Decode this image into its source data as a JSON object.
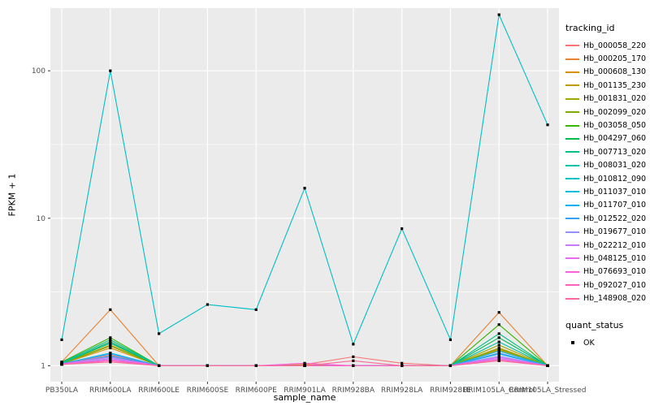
{
  "chart_data": {
    "type": "line",
    "title": "",
    "xlabel": "sample_name",
    "ylabel": "FPKM + 1",
    "y_scale": "log10",
    "ylim": [
      0.78,
      266
    ],
    "y_ticks": [
      1,
      10,
      100
    ],
    "y_minor": [
      3.162,
      31.623
    ],
    "panel_bg": "#EBEBEB",
    "grid_color": "#FFFFFF",
    "point_color": "#000000",
    "legend_title": "tracking_id",
    "quant_legend": {
      "title": "quant_status",
      "items": [
        "OK"
      ]
    },
    "categories": [
      "PB350LA",
      "RRIM600LA",
      "RRIM600LE",
      "RRIM600SE",
      "RRIM600PE",
      "RRIM901LA",
      "RRIM928BA",
      "RRIM928LA",
      "RRIM928LE",
      "RRIM105LA_Control",
      "RRIM105LA_Stressed"
    ],
    "series": [
      {
        "name": "Hb_000058_220",
        "color": "#F8766D",
        "values": [
          1.03,
          1.18,
          1,
          1,
          1,
          1.02,
          1.15,
          1.04,
          1,
          1.22,
          1
        ]
      },
      {
        "name": "Hb_000205_170",
        "color": "#EA8331",
        "values": [
          1.06,
          2.4,
          1,
          1,
          1,
          1.02,
          1,
          1,
          1,
          2.3,
          1
        ]
      },
      {
        "name": "Hb_000608_130",
        "color": "#D89000",
        "values": [
          1.03,
          1.32,
          1,
          1,
          1,
          1,
          1,
          1,
          1,
          1.28,
          1
        ]
      },
      {
        "name": "Hb_001135_230",
        "color": "#C09B00",
        "values": [
          1.04,
          1.38,
          1,
          1,
          1,
          1,
          1,
          1,
          1,
          1.32,
          1
        ]
      },
      {
        "name": "Hb_001831_020",
        "color": "#A3A500",
        "values": [
          1.04,
          1.46,
          1,
          1,
          1,
          1,
          1,
          1,
          1,
          1.38,
          1
        ]
      },
      {
        "name": "Hb_002099_020",
        "color": "#7CAE00",
        "values": [
          1.03,
          1.36,
          1,
          1,
          1,
          1,
          1,
          1,
          1,
          1.3,
          1
        ]
      },
      {
        "name": "Hb_003058_050",
        "color": "#39B600",
        "values": [
          1.06,
          1.55,
          1,
          1,
          1,
          1,
          1,
          1,
          1,
          1.9,
          1
        ]
      },
      {
        "name": "Hb_004297_060",
        "color": "#00BB4E",
        "values": [
          1.04,
          1.42,
          1,
          1,
          1,
          1,
          1,
          1,
          1,
          1.55,
          1
        ]
      },
      {
        "name": "Hb_007713_020",
        "color": "#00C087",
        "values": [
          1.05,
          1.5,
          1,
          1,
          1,
          1,
          1,
          1,
          1,
          1.65,
          1
        ]
      },
      {
        "name": "Hb_008031_020",
        "color": "#00C1AB",
        "values": [
          1.04,
          1.45,
          1,
          1,
          1,
          1,
          1,
          1,
          1,
          1.45,
          1
        ]
      },
      {
        "name": "Hb_010812_090",
        "color": "#00BFC4",
        "values": [
          1.5,
          100,
          1.65,
          2.6,
          2.4,
          16,
          1.4,
          8.5,
          1.5,
          240,
          43
        ]
      },
      {
        "name": "Hb_011037_010",
        "color": "#00BAE0",
        "values": [
          1.03,
          1.22,
          1,
          1,
          1,
          1,
          1,
          1,
          1,
          1.26,
          1
        ]
      },
      {
        "name": "Hb_011707_010",
        "color": "#00B0F6",
        "values": [
          1.02,
          1.16,
          1,
          1,
          1,
          1,
          1,
          1,
          1,
          1.2,
          1
        ]
      },
      {
        "name": "Hb_012522_020",
        "color": "#35A2FF",
        "values": [
          1.03,
          1.2,
          1,
          1,
          1,
          1,
          1,
          1,
          1,
          1.22,
          1
        ]
      },
      {
        "name": "Hb_019677_010",
        "color": "#9590FF",
        "values": [
          1.02,
          1.12,
          1,
          1,
          1,
          1,
          1,
          1,
          1,
          1.16,
          1
        ]
      },
      {
        "name": "Hb_022212_010",
        "color": "#C77CFF",
        "values": [
          1.02,
          1.1,
          1,
          1,
          1,
          1,
          1,
          1,
          1,
          1.12,
          1
        ]
      },
      {
        "name": "Hb_048125_010",
        "color": "#E76BF3",
        "values": [
          1.03,
          1.14,
          1,
          1,
          1,
          1,
          1,
          1,
          1,
          1.14,
          1
        ]
      },
      {
        "name": "Hb_076693_010",
        "color": "#FA62DB",
        "values": [
          1.02,
          1.1,
          1,
          1,
          1,
          1.04,
          1,
          1,
          1,
          1.1,
          1
        ]
      },
      {
        "name": "Hb_092027_010",
        "color": "#FF62BC",
        "values": [
          1.02,
          1.08,
          1,
          1,
          1,
          1,
          1,
          1,
          1,
          1.1,
          1
        ]
      },
      {
        "name": "Hb_148908_020",
        "color": "#FF6A98",
        "values": [
          1.02,
          1.06,
          1,
          1,
          1,
          1,
          1.08,
          1,
          1,
          1.08,
          1
        ]
      }
    ]
  }
}
